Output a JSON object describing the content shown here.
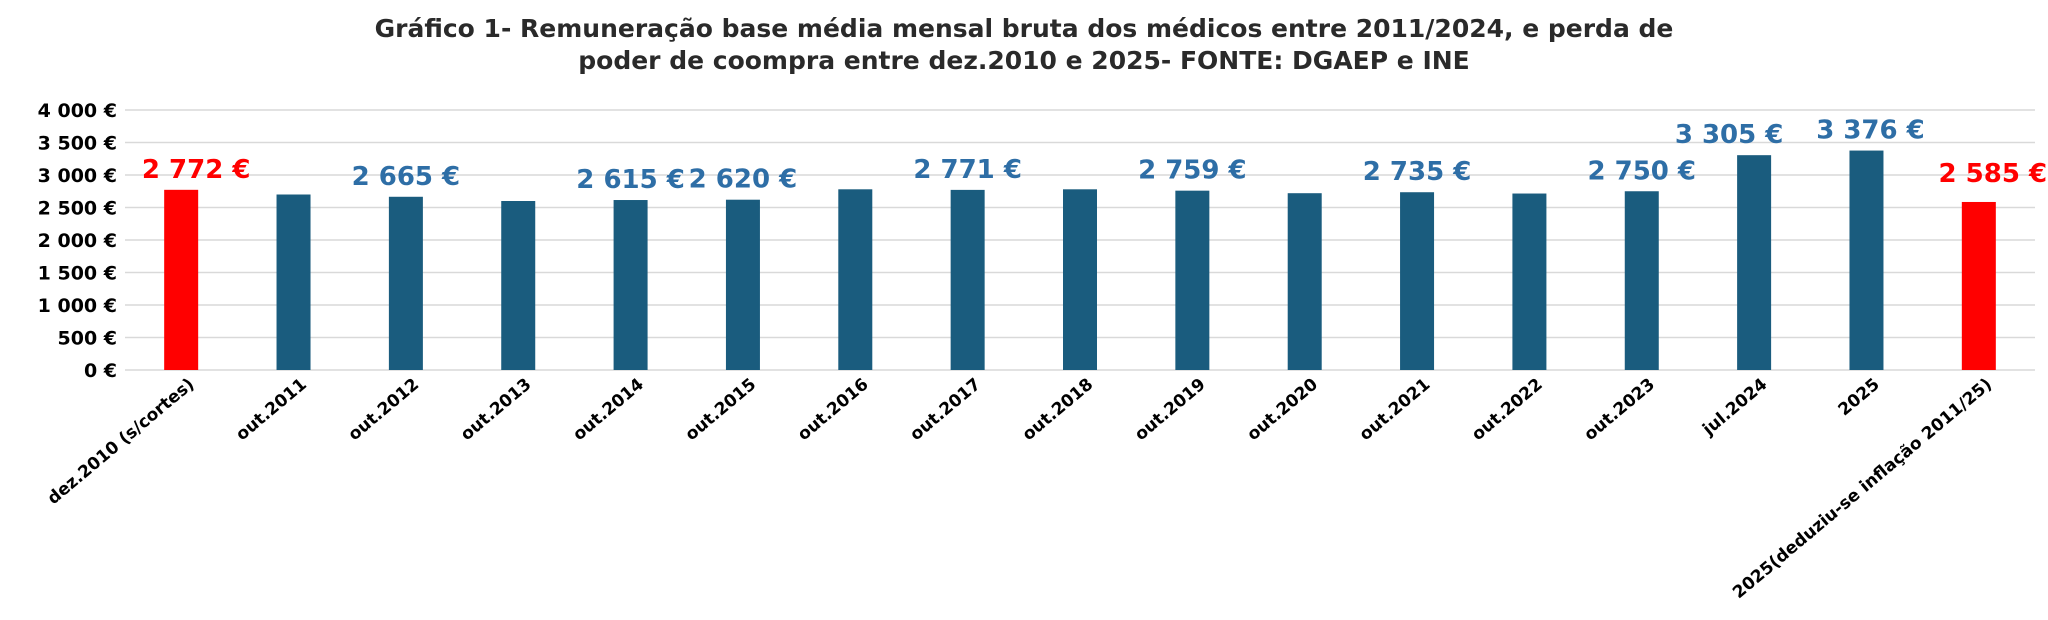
{
  "chart_data": {
    "type": "bar",
    "title_lines": [
      "Gráfico 1- Remuneração base média mensal bruta dos médicos entre 2011/2024, e perda de",
      "poder de coompra entre  dez.2010 e 2025- FONTE: DGAEP e INE"
    ],
    "categories": [
      "dez.2010 (s/cortes)",
      "out.2011",
      "out.2012",
      "out.2013",
      "out.2014",
      "out.2015",
      "out.2016",
      "out.2017",
      "out.2018",
      "out.2019",
      "out.2020",
      "out.2021",
      "out.2022",
      "out.2023",
      "jul.2024",
      "2025",
      "2025(deduziu-se inflação 2011/25)"
    ],
    "values": [
      2772,
      2700,
      2665,
      2600,
      2615,
      2620,
      2780,
      2771,
      2780,
      2759,
      2720,
      2735,
      2715,
      2750,
      3305,
      3376,
      2585
    ],
    "data_labels": [
      "2 772 €",
      "",
      "2 665 €",
      "",
      "2 615 €",
      "2 620 €",
      "",
      "2 771 €",
      "",
      "2 759 €",
      "",
      "2 735 €",
      "",
      "2 750 €",
      "3 305 €",
      "3 376 €",
      "2 585 €"
    ],
    "bar_colors": [
      "#ff0000",
      "#1a5c7e",
      "#1a5c7e",
      "#1a5c7e",
      "#1a5c7e",
      "#1a5c7e",
      "#1a5c7e",
      "#1a5c7e",
      "#1a5c7e",
      "#1a5c7e",
      "#1a5c7e",
      "#1a5c7e",
      "#1a5c7e",
      "#1a5c7e",
      "#1a5c7e",
      "#1a5c7e",
      "#ff0000"
    ],
    "label_colors": [
      "#ff0000",
      "#2e6ea6",
      "#2e6ea6",
      "#2e6ea6",
      "#2e6ea6",
      "#2e6ea6",
      "#2e6ea6",
      "#2e6ea6",
      "#2e6ea6",
      "#2e6ea6",
      "#2e6ea6",
      "#2e6ea6",
      "#2e6ea6",
      "#2e6ea6",
      "#2e6ea6",
      "#2e6ea6",
      "#ff0000"
    ],
    "y_ticks": [
      0,
      500,
      1000,
      1500,
      2000,
      2500,
      3000,
      3500,
      4000
    ],
    "y_tick_labels": [
      "0 €",
      "500 €",
      "1 000 €",
      "1 500 €",
      "2 000 €",
      "2 500 €",
      "3 000 €",
      "3 500 €",
      "4 000 €"
    ],
    "ylim": [
      0,
      4000
    ],
    "grid": true,
    "grid_color": "#d9d9d9"
  }
}
